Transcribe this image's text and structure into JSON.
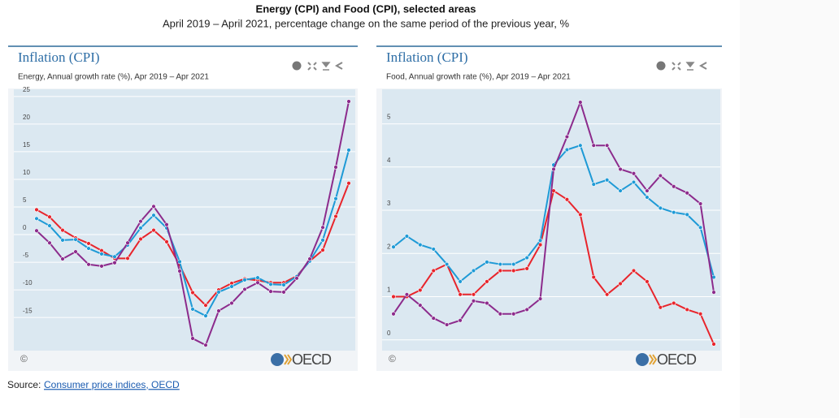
{
  "header": {
    "title": "Energy (CPI) and Food (CPI), selected areas",
    "subtitle": "April 2019 – April 2021, percentage change on the same period of the previous year, %"
  },
  "chart_data": [
    {
      "type": "line",
      "title": "Inflation (CPI)",
      "subtitle": "Energy, Annual growth rate (%), Apr 2019 – Apr 2021",
      "copyright": "©",
      "logo": "OECD",
      "ylim": [
        -21,
        26.3
      ],
      "yticks": [
        25,
        20,
        15,
        10,
        5,
        0,
        -5,
        -10,
        -15
      ],
      "grid": true,
      "series": [
        {
          "color": "#e8242b",
          "values": [
            4.5,
            3.2,
            0.8,
            -0.6,
            -1.6,
            -2.9,
            -4.3,
            -4.3,
            -0.8,
            0.8,
            -1.3,
            -5.5,
            -10.5,
            -12.8,
            -10,
            -8.8,
            -8,
            -8.3,
            -8.7,
            -8.7,
            -7.5,
            -4.8,
            -2.8,
            3.3,
            9.3
          ]
        },
        {
          "color": "#1e9ad6",
          "values": [
            2.9,
            1.6,
            -1,
            -0.9,
            -2.5,
            -3.5,
            -4,
            -1.9,
            1.2,
            3.5,
            1.2,
            -4.9,
            -13.5,
            -14.7,
            -10.4,
            -9.4,
            -8.2,
            -7.8,
            -9,
            -9.1,
            -7.6,
            -4.8,
            -1,
            6.5,
            15.3
          ]
        },
        {
          "color": "#8c2b8c",
          "values": [
            0.7,
            -1.5,
            -4.4,
            -3.1,
            -5.4,
            -5.7,
            -5.1,
            -1.5,
            2.4,
            5.1,
            1.8,
            -6.6,
            -18.8,
            -20,
            -13.8,
            -12.4,
            -9.9,
            -8.7,
            -10.3,
            -10.4,
            -7.9,
            -4.4,
            1.3,
            12.2,
            24.1
          ]
        }
      ]
    },
    {
      "type": "line",
      "title": "Inflation (CPI)",
      "subtitle": "Food, Annual growth rate (%), Apr 2019 – Apr 2021",
      "copyright": "©",
      "logo": "OECD",
      "ylim": [
        -0.25,
        5.8
      ],
      "yticks": [
        5,
        4,
        3,
        2,
        1,
        0
      ],
      "grid": true,
      "series": [
        {
          "color": "#e8242b",
          "values": [
            1.0,
            1.0,
            1.15,
            1.6,
            1.75,
            1.05,
            1.05,
            1.35,
            1.6,
            1.6,
            1.65,
            2.2,
            3.45,
            3.25,
            2.9,
            1.45,
            1.05,
            1.3,
            1.6,
            1.35,
            0.75,
            0.85,
            0.7,
            0.6,
            -0.1
          ]
        },
        {
          "color": "#1e9ad6",
          "values": [
            2.15,
            2.4,
            2.2,
            2.1,
            1.75,
            1.35,
            1.6,
            1.8,
            1.75,
            1.75,
            1.9,
            2.3,
            4.05,
            4.4,
            4.5,
            3.6,
            3.7,
            3.45,
            3.65,
            3.3,
            3.05,
            2.95,
            2.9,
            2.6,
            1.45
          ]
        },
        {
          "color": "#8c2b8c",
          "values": [
            0.6,
            1.05,
            0.8,
            0.5,
            0.35,
            0.45,
            0.9,
            0.85,
            0.6,
            0.6,
            0.7,
            0.95,
            3.95,
            4.7,
            5.5,
            4.5,
            4.5,
            3.95,
            3.85,
            3.45,
            3.8,
            3.55,
            3.4,
            3.15,
            1.1
          ]
        }
      ]
    }
  ],
  "source": {
    "label": "Source:",
    "link": "Consumer price indices, OECD"
  }
}
